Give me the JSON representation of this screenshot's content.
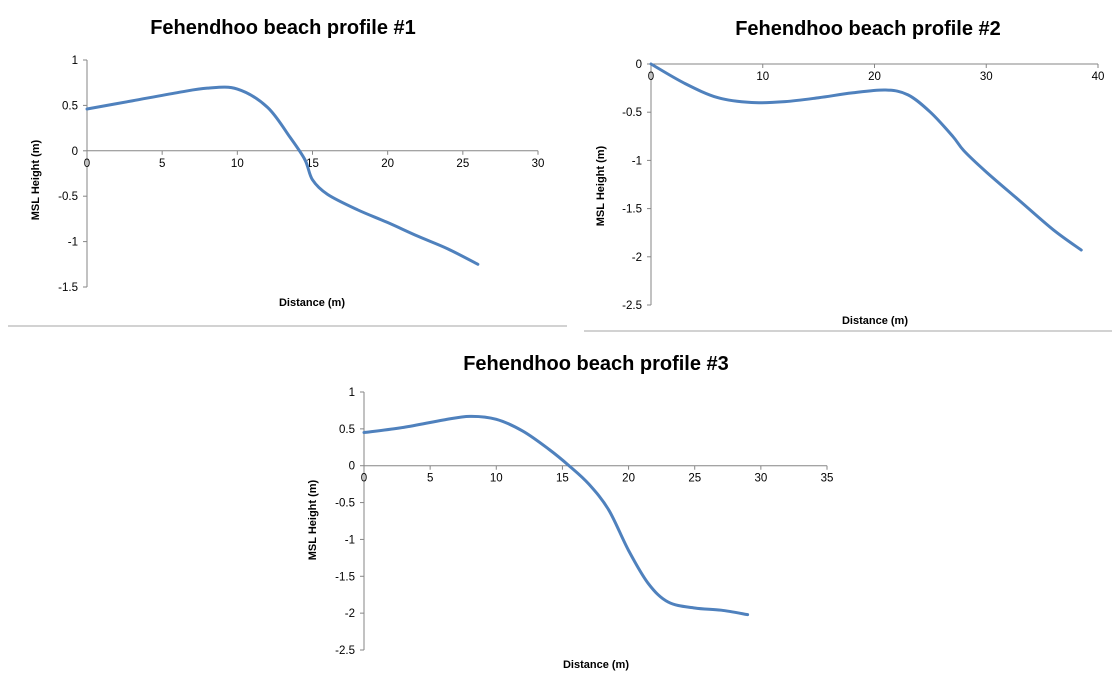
{
  "chart_data": [
    {
      "type": "line",
      "title": "Fehendhoo beach profile #1",
      "xlabel": "Distance  (m)",
      "ylabel": "MSL Height (m)",
      "xlim": [
        0,
        30
      ],
      "ylim": [
        -1.5,
        1
      ],
      "x_ticks": [
        0,
        5,
        10,
        15,
        20,
        25,
        30
      ],
      "y_ticks": [
        1,
        0.5,
        0,
        -0.5,
        -1,
        -1.5
      ],
      "grid": false,
      "line_color": "#4f81bd",
      "series": [
        {
          "x": [
            0,
            3,
            6,
            8,
            10,
            12,
            13.5,
            14.5,
            15,
            16,
            18,
            20,
            22,
            24,
            26
          ],
          "y": [
            0.46,
            0.55,
            0.64,
            0.69,
            0.68,
            0.48,
            0.15,
            -0.1,
            -0.32,
            -0.48,
            -0.65,
            -0.79,
            -0.94,
            -1.08,
            -1.25
          ]
        }
      ]
    },
    {
      "type": "line",
      "title": "Fehendhoo beach profile #2",
      "xlabel": "Distance  (m)",
      "ylabel": "MSL Height (m)",
      "xlim": [
        0,
        40
      ],
      "ylim": [
        -2.5,
        0
      ],
      "x_ticks": [
        0,
        10,
        20,
        30,
        40
      ],
      "y_ticks": [
        0,
        -0.5,
        -1,
        -1.5,
        -2,
        -2.5
      ],
      "grid": false,
      "line_color": "#4f81bd",
      "series": [
        {
          "x": [
            0,
            3,
            6,
            9,
            12,
            15,
            18,
            21,
            23,
            25,
            27,
            28,
            30,
            33,
            36,
            38.5
          ],
          "y": [
            0,
            -0.2,
            -0.35,
            -0.4,
            -0.39,
            -0.35,
            -0.3,
            -0.27,
            -0.32,
            -0.5,
            -0.75,
            -0.9,
            -1.12,
            -1.42,
            -1.72,
            -1.93
          ]
        }
      ]
    },
    {
      "type": "line",
      "title": "Fehendhoo beach profile #3",
      "xlabel": "Distance  (m)",
      "ylabel": "MSL Height (m)",
      "xlim": [
        0,
        35
      ],
      "ylim": [
        -2.5,
        1
      ],
      "x_ticks": [
        0,
        5,
        10,
        15,
        20,
        25,
        30,
        35
      ],
      "y_ticks": [
        1,
        0.5,
        0,
        -0.5,
        -1,
        -1.5,
        -2,
        -2.5
      ],
      "grid": false,
      "line_color": "#4f81bd",
      "series": [
        {
          "x": [
            0,
            3,
            6,
            8,
            10,
            12,
            14,
            15.5,
            17,
            18.5,
            20,
            21.5,
            23,
            25,
            27,
            29
          ],
          "y": [
            0.45,
            0.52,
            0.62,
            0.67,
            0.63,
            0.47,
            0.22,
            0.0,
            -0.25,
            -0.6,
            -1.15,
            -1.6,
            -1.85,
            -1.93,
            -1.96,
            -2.02
          ]
        }
      ]
    }
  ]
}
